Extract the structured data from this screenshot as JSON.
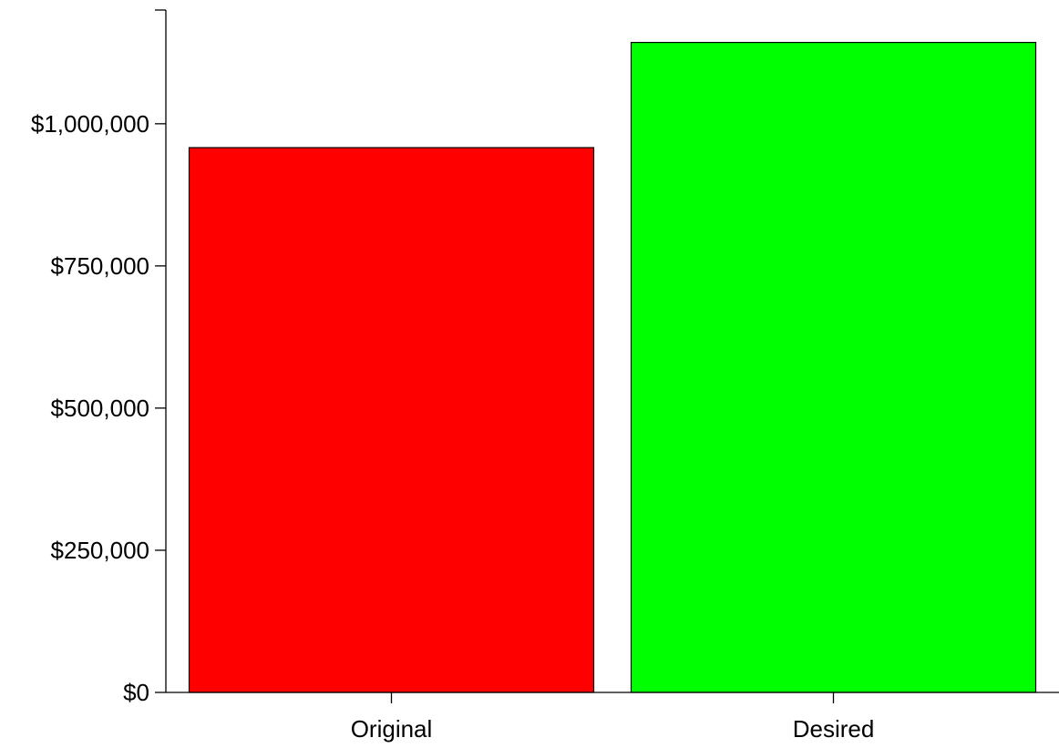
{
  "chart_data": {
    "type": "bar",
    "title": "",
    "xlabel": "",
    "ylabel": "",
    "categories": [
      "Original",
      "Desired"
    ],
    "values": [
      958000,
      1143000
    ],
    "colors": [
      "#ff0000",
      "#00ff00"
    ],
    "ylim": [
      0,
      1200000
    ],
    "yticks": [
      0,
      250000,
      500000,
      750000,
      1000000,
      1200000
    ],
    "ytick_labels": [
      "$0",
      "$250,000",
      "$500,000",
      "$750,000",
      "$1,000,000",
      ""
    ],
    "grid": false,
    "legend": "none"
  }
}
